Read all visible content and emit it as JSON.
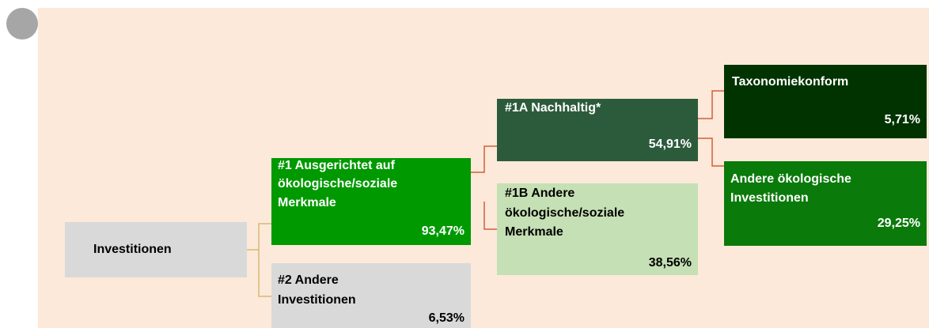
{
  "nodes": [
    {
      "lines": [
        "Investitionen"
      ]
    },
    {
      "lines": [
        "#1 Ausgerichtet auf",
        "ökologische/soziale",
        "Merkmale"
      ],
      "value": "93,47%"
    },
    {
      "lines": [
        "#2 Andere",
        "Investitionen"
      ],
      "value": "6,53%"
    },
    {
      "lines": [
        "#1A Nachhaltig*"
      ],
      "value": "54,91%"
    },
    {
      "lines": [
        "#1B Andere",
        "ökologische/soziale",
        "Merkmale"
      ],
      "value": "38,56%"
    },
    {
      "lines": [
        "Taxonomiekonform"
      ],
      "value": "5,71%"
    },
    {
      "lines": [
        "Andere ökologische",
        "Investitionen"
      ],
      "value": "29,25%"
    }
  ]
}
